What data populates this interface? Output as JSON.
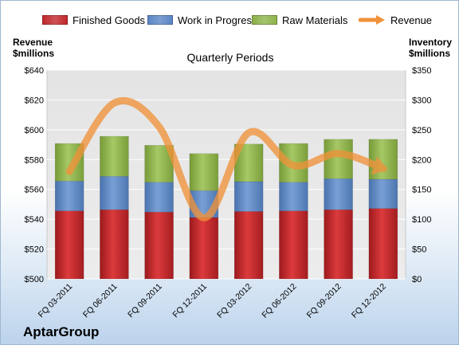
{
  "company": "AptarGroup",
  "left_axis_title": [
    "Revenue",
    "$millions"
  ],
  "right_axis_title": [
    "Inventory",
    "$millions"
  ],
  "chart_data": {
    "type": "bar",
    "subtitle": "Quarterly Periods",
    "stacked": true,
    "categories": [
      "FQ 03-2011",
      "FQ 06-2011",
      "FQ 09-2011",
      "FQ 12-2011",
      "FQ 03-2012",
      "FQ 06-2012",
      "FQ 09-2012",
      "FQ 12-2012"
    ],
    "series": [
      {
        "name": "Finished Goods",
        "axis": "right",
        "color": "#c0282b",
        "values": [
          114,
          116,
          112,
          103,
          113,
          114,
          116,
          118
        ]
      },
      {
        "name": "Work in Progress",
        "axis": "right",
        "color": "#5b86c5",
        "values": [
          50,
          56,
          50,
          45,
          50,
          48,
          52,
          49
        ]
      },
      {
        "name": "Raw Materials",
        "axis": "right",
        "color": "#8eb34a",
        "values": [
          63,
          67,
          62,
          62,
          63,
          65,
          66,
          67
        ]
      },
      {
        "name": "Revenue",
        "type": "line",
        "axis": "left",
        "color": "#f0923a",
        "values": [
          572,
          618,
          602,
          541,
          598,
          576,
          584,
          574
        ]
      }
    ],
    "left_axis": {
      "min": 500,
      "max": 640,
      "ticks": [
        "$500",
        "$520",
        "$540",
        "$560",
        "$580",
        "$600",
        "$620",
        "$640"
      ]
    },
    "right_axis": {
      "min": 0,
      "max": 350,
      "ticks": [
        "$0",
        "$50",
        "$100",
        "$150",
        "$200",
        "$250",
        "$300",
        "$350"
      ]
    },
    "grid": true,
    "legend_position": "top"
  }
}
